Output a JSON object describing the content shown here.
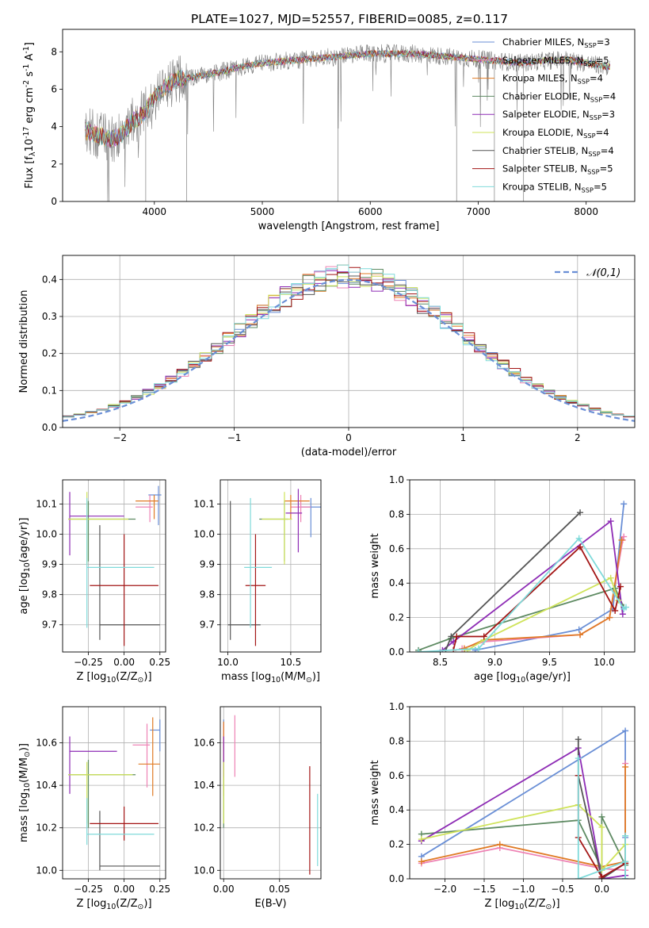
{
  "figure": {
    "title": "PLATE=1027, MJD=52557, FIBERID=0085, z=0.117"
  },
  "colors": {
    "Chabrier MILES": "#6a8fd6",
    "Salpeter MILES": "#ee82b4",
    "Kroupa MILES": "#e07b25",
    "Chabrier ELODIE": "#5e8a62",
    "Salpeter ELODIE": "#8e2cb5",
    "Kroupa ELODIE": "#cfe35a",
    "Chabrier STELIB": "#555555",
    "Salpeter STELIB": "#a31515",
    "Kroupa STELIB": "#7fdada",
    "data": "#808080"
  },
  "chart_data": [
    {
      "type": "line",
      "id": "spectrum",
      "xlabel": "wavelength [Angstrom, rest frame]",
      "ylabel": "Flux [f$_\\lambda$10$^{-17}$ erg cm$^{-2}$ s$^{-1}$ A$^{-1}$]",
      "xlim": [
        3150,
        8450
      ],
      "ylim": [
        0,
        9.2
      ],
      "xticks": [
        4000,
        5000,
        6000,
        7000,
        8000
      ],
      "yticks": [
        0,
        2,
        4,
        6,
        8
      ],
      "grid": false,
      "legend_position": "upper-right",
      "continuum": {
        "x": [
          3350,
          3450,
          3600,
          3700,
          3800,
          3900,
          4000,
          4100,
          4200,
          4400,
          4600,
          4800,
          5000,
          5200,
          5400,
          5600,
          5800,
          6000,
          6200,
          6400,
          6600,
          6800,
          7000,
          7200,
          7400,
          7600,
          7800,
          8000,
          8200
        ],
        "y": [
          3.8,
          3.6,
          3.3,
          3.6,
          4.3,
          4.7,
          5.6,
          6.1,
          6.5,
          6.7,
          6.9,
          7.2,
          7.4,
          7.5,
          7.6,
          7.7,
          7.8,
          7.9,
          7.9,
          7.9,
          7.8,
          7.7,
          7.6,
          7.5,
          7.4,
          7.5,
          7.6,
          7.4,
          7.2
        ]
      },
      "series": [
        {
          "name": "Chabrier MILES, N$_{SSP}$=3"
        },
        {
          "name": "Salpeter MILES, N$_{SSP}$=5"
        },
        {
          "name": "Kroupa MILES, N$_{SSP}$=4"
        },
        {
          "name": "Chabrier ELODIE, N$_{SSP}$=4"
        },
        {
          "name": "Salpeter ELODIE, N$_{SSP}$=3"
        },
        {
          "name": "Kroupa ELODIE, N$_{SSP}$=4"
        },
        {
          "name": "Chabrier STELIB, N$_{SSP}$=4"
        },
        {
          "name": "Salpeter STELIB, N$_{SSP}$=5"
        },
        {
          "name": "Kroupa STELIB, N$_{SSP}$=5"
        }
      ]
    },
    {
      "type": "histogram",
      "id": "residuals",
      "xlabel": "(data-model)/error",
      "ylabel": "Normed distribution",
      "xlim": [
        -2.5,
        2.5
      ],
      "ylim": [
        0,
        0.465
      ],
      "xticks": [
        -2,
        -1,
        0,
        1,
        2
      ],
      "yticks": [
        0.0,
        0.1,
        0.2,
        0.3,
        0.4
      ],
      "grid": true,
      "legend_position": "upper-right",
      "reference": {
        "name": "$\\mathcal{N}(0,1)$",
        "mu": 0,
        "sigma": 1
      },
      "bin_width": 0.1
    },
    {
      "type": "errorbar",
      "id": "age-vs-Z",
      "xlabel": "Z [log$_{10}$(Z/Z$_\\odot$)]",
      "ylabel": "age  [log$_{10}$(age/yr)]",
      "xlim": [
        -0.43,
        0.29
      ],
      "ylim": [
        9.61,
        10.18
      ],
      "xticks": [
        -0.25,
        0.0,
        0.25
      ],
      "yticks": [
        9.7,
        9.8,
        9.9,
        10.0,
        10.1
      ],
      "grid": true,
      "points": [
        {
          "series": "Chabrier MILES",
          "x": 0.24,
          "y": 10.13,
          "xerr": [
            0.07,
            0.02
          ],
          "yerr": [
            0.1,
            0.03
          ]
        },
        {
          "series": "Salpeter MILES",
          "x": 0.18,
          "y": 10.09,
          "xerr": [
            0.1,
            0.02
          ],
          "yerr": [
            0.05,
            0.04
          ]
        },
        {
          "series": "Kroupa MILES",
          "x": 0.21,
          "y": 10.11,
          "xerr": [
            0.13,
            0.03
          ],
          "yerr": [
            0.06,
            0.02
          ]
        },
        {
          "series": "Chabrier ELODIE",
          "x": -0.25,
          "y": 10.05,
          "xerr": [
            0.14,
            0.33
          ],
          "yerr": [
            0.14,
            0.06
          ]
        },
        {
          "series": "Salpeter ELODIE",
          "x": -0.38,
          "y": 10.06,
          "xerr": [
            0.0,
            0.38
          ],
          "yerr": [
            0.13,
            0.08
          ]
        },
        {
          "series": "Kroupa ELODIE",
          "x": -0.26,
          "y": 10.05,
          "xerr": [
            0.13,
            0.29
          ],
          "yerr": [
            0.15,
            0.09
          ]
        },
        {
          "series": "Chabrier STELIB",
          "x": -0.17,
          "y": 9.7,
          "xerr": [
            0.0,
            0.42
          ],
          "yerr": [
            0.05,
            0.33
          ]
        },
        {
          "series": "Salpeter STELIB",
          "x": 0.0,
          "y": 9.83,
          "xerr": [
            0.24,
            0.24
          ],
          "yerr": [
            0.2,
            0.17
          ]
        },
        {
          "series": "Kroupa STELIB",
          "x": -0.26,
          "y": 9.89,
          "xerr": [
            0.0,
            0.47
          ],
          "yerr": [
            0.2,
            0.23
          ]
        }
      ]
    },
    {
      "type": "errorbar",
      "id": "age-vs-mass",
      "xlabel": "mass [log$_{10}$(M/M$_\\odot$)]",
      "ylabel": "",
      "xlim": [
        9.94,
        10.74
      ],
      "ylim": [
        9.61,
        10.18
      ],
      "xticks": [
        10.0,
        10.5
      ],
      "yticks": [
        9.7,
        9.8,
        9.9,
        10.0,
        10.1
      ],
      "grid": true,
      "points": [
        {
          "series": "Chabrier MILES",
          "x": 10.66,
          "y": 10.09,
          "xerr": [
            0.08,
            0.08
          ],
          "yerr": [
            0.1,
            0.03
          ]
        },
        {
          "series": "Salpeter MILES",
          "x": 10.58,
          "y": 10.09,
          "xerr": [
            0.08,
            0.08
          ],
          "yerr": [
            0.05,
            0.04
          ]
        },
        {
          "series": "Kroupa MILES",
          "x": 10.5,
          "y": 10.11,
          "xerr": [
            0.05,
            0.15
          ],
          "yerr": [
            0.06,
            0.02
          ]
        },
        {
          "series": "Chabrier ELODIE",
          "x": 10.45,
          "y": 10.05,
          "xerr": [
            0.2,
            0.03
          ],
          "yerr": [
            0.14,
            0.06
          ]
        },
        {
          "series": "Salpeter ELODIE",
          "x": 10.56,
          "y": 10.07,
          "xerr": [
            0.1,
            0.03
          ],
          "yerr": [
            0.13,
            0.08
          ]
        },
        {
          "series": "Kroupa ELODIE",
          "x": 10.45,
          "y": 10.05,
          "xerr": [
            0.18,
            0.06
          ],
          "yerr": [
            0.15,
            0.09
          ]
        },
        {
          "series": "Chabrier STELIB",
          "x": 10.02,
          "y": 9.7,
          "xerr": [
            0.02,
            0.24
          ],
          "yerr": [
            0.05,
            0.41
          ]
        },
        {
          "series": "Salpeter STELIB",
          "x": 10.22,
          "y": 9.83,
          "xerr": [
            0.08,
            0.08
          ],
          "yerr": [
            0.2,
            0.17
          ]
        },
        {
          "series": "Kroupa STELIB",
          "x": 10.18,
          "y": 9.89,
          "xerr": [
            0.05,
            0.17
          ],
          "yerr": [
            0.2,
            0.23
          ]
        }
      ]
    },
    {
      "type": "line",
      "id": "weight-vs-age",
      "xlabel": "age  [log$_{10}$(age/yr)]",
      "ylabel": "mass weight",
      "xlim": [
        8.22,
        10.28
      ],
      "ylim": [
        0,
        1.0
      ],
      "xticks": [
        8.5,
        9.0,
        9.5,
        10.0
      ],
      "yticks": [
        0.0,
        0.2,
        0.4,
        0.6,
        0.8,
        1.0
      ],
      "grid": true,
      "series": [
        {
          "name": "Chabrier MILES",
          "x": [
            8.82,
            9.77,
            10.08,
            10.18
          ],
          "y": [
            0.01,
            0.13,
            0.25,
            0.86
          ]
        },
        {
          "name": "Salpeter MILES",
          "x": [
            8.7,
            8.9,
            9.78,
            10.05,
            10.17,
            10.18
          ],
          "y": [
            0.02,
            0.06,
            0.1,
            0.2,
            0.65,
            0.67
          ]
        },
        {
          "name": "Kroupa MILES",
          "x": [
            8.72,
            8.9,
            9.78,
            10.05,
            10.16
          ],
          "y": [
            0.02,
            0.07,
            0.1,
            0.2,
            0.65
          ]
        },
        {
          "name": "Chabrier ELODIE",
          "x": [
            8.3,
            8.6,
            10.1,
            10.18
          ],
          "y": [
            0.01,
            0.08,
            0.37,
            0.26
          ]
        },
        {
          "name": "Salpeter ELODIE",
          "x": [
            8.52,
            8.62,
            10.06,
            10.17
          ],
          "y": [
            0.01,
            0.06,
            0.76,
            0.22
          ]
        },
        {
          "name": "Kroupa ELODIE",
          "x": [
            8.75,
            8.9,
            10.06,
            10.13
          ],
          "y": [
            0.01,
            0.07,
            0.43,
            0.3
          ]
        },
        {
          "name": "Chabrier STELIB",
          "x": [
            8.55,
            8.6,
            9.78
          ],
          "y": [
            0.01,
            0.09,
            0.81
          ]
        },
        {
          "name": "Salpeter STELIB",
          "x": [
            8.62,
            8.65,
            8.9,
            9.78,
            10.1,
            10.15
          ],
          "y": [
            0.01,
            0.09,
            0.09,
            0.61,
            0.24,
            0.38
          ]
        },
        {
          "name": "Kroupa STELIB",
          "x": [
            8.3,
            8.85,
            9.77,
            10.18,
            10.2
          ],
          "y": [
            0.0,
            0.02,
            0.66,
            0.25,
            0.26
          ]
        }
      ]
    },
    {
      "type": "errorbar",
      "id": "mass-vs-Z",
      "xlabel": "Z [log$_{10}$(Z/Z$_\\odot$)]",
      "ylabel": "mass [log$_{10}$(M/M$_\\odot$)]",
      "xlim": [
        -0.43,
        0.29
      ],
      "ylim": [
        9.96,
        10.77
      ],
      "xticks": [
        -0.25,
        0.0,
        0.25
      ],
      "yticks": [
        10.0,
        10.2,
        10.4,
        10.6
      ],
      "grid": true,
      "points": [
        {
          "series": "Chabrier MILES",
          "x": 0.25,
          "y": 10.66,
          "xerr": [
            0.07,
            0.0
          ],
          "yerr": [
            0.1,
            0.05
          ]
        },
        {
          "series": "Salpeter MILES",
          "x": 0.16,
          "y": 10.59,
          "xerr": [
            0.1,
            0.02
          ],
          "yerr": [
            0.2,
            0.1
          ]
        },
        {
          "series": "Kroupa MILES",
          "x": 0.2,
          "y": 10.5,
          "xerr": [
            0.1,
            0.05
          ],
          "yerr": [
            0.15,
            0.22
          ]
        },
        {
          "series": "Chabrier ELODIE",
          "x": -0.25,
          "y": 10.45,
          "xerr": [
            0.14,
            0.33
          ],
          "yerr": [
            0.25,
            0.07
          ]
        },
        {
          "series": "Salpeter ELODIE",
          "x": -0.38,
          "y": 10.56,
          "xerr": [
            0.0,
            0.33
          ],
          "yerr": [
            0.2,
            0.07
          ]
        },
        {
          "series": "Kroupa ELODIE",
          "x": -0.26,
          "y": 10.45,
          "xerr": [
            0.13,
            0.32
          ],
          "yerr": [
            0.23,
            0.06
          ]
        },
        {
          "series": "Chabrier STELIB",
          "x": -0.17,
          "y": 10.02,
          "xerr": [
            0.0,
            0.42
          ],
          "yerr": [
            0.02,
            0.26
          ]
        },
        {
          "series": "Salpeter STELIB",
          "x": 0.0,
          "y": 10.22,
          "xerr": [
            0.24,
            0.24
          ],
          "yerr": [
            0.08,
            0.08
          ]
        },
        {
          "series": "Kroupa STELIB",
          "x": -0.26,
          "y": 10.17,
          "xerr": [
            0.0,
            0.47
          ],
          "yerr": [
            0.05,
            0.17
          ]
        }
      ]
    },
    {
      "type": "errorbar",
      "id": "mass-vs-EBV",
      "xlabel": "E(B-V)",
      "ylabel": "",
      "xlim": [
        -0.003,
        0.087
      ],
      "ylim": [
        9.96,
        10.77
      ],
      "xticks": [
        0.0,
        0.05
      ],
      "yticks": [
        10.0,
        10.2,
        10.4,
        10.6
      ],
      "grid": true,
      "points": [
        {
          "series": "Chabrier MILES",
          "x": 0.0,
          "y": 10.66,
          "xerr": [
            0,
            0
          ],
          "yerr": [
            0.1,
            0.05
          ]
        },
        {
          "series": "Salpeter MILES",
          "x": 0.0,
          "y": 10.59,
          "xerr": [
            0,
            0
          ],
          "yerr": [
            0.1,
            0.1
          ]
        },
        {
          "series": "Kroupa MILES",
          "x": 0.0,
          "y": 10.5,
          "xerr": [
            0,
            0
          ],
          "yerr": [
            0.15,
            0.2
          ]
        },
        {
          "series": "Chabrier ELODIE",
          "x": 0.0,
          "y": 10.45,
          "xerr": [
            0,
            0
          ],
          "yerr": [
            0.25,
            0.07
          ]
        },
        {
          "series": "Salpeter ELODIE",
          "x": 0.0,
          "y": 10.56,
          "xerr": [
            0,
            0
          ],
          "yerr": [
            0.12,
            0.07
          ]
        },
        {
          "series": "Kroupa ELODIE",
          "x": 0.0,
          "y": 10.45,
          "xerr": [
            0,
            0
          ],
          "yerr": [
            0.23,
            0.06
          ]
        },
        {
          "series": "Chabrier STELIB",
          "x": 0.0,
          "y": 10.02,
          "xerr": [
            0,
            0
          ],
          "yerr": [
            0.0,
            0.0
          ]
        },
        {
          "series": "Salpeter STELIB",
          "x": 0.077,
          "y": 10.22,
          "xerr": [
            0,
            0
          ],
          "yerr": [
            0.24,
            0.27
          ]
        },
        {
          "series": "Kroupa STELIB",
          "x": 0.084,
          "y": 10.17,
          "xerr": [
            0,
            0
          ],
          "yerr": [
            0.15,
            0.19
          ]
        },
        {
          "series": "Salpeter MILES",
          "x": 0.01,
          "y": 10.55,
          "xerr": [
            0,
            0
          ],
          "yerr": [
            0.11,
            0.18
          ]
        }
      ]
    },
    {
      "type": "line",
      "id": "weight-vs-Z",
      "xlabel": "Z [log$_{10}$(Z/Z$_\\odot$)]",
      "ylabel": "mass weight",
      "xlim": [
        -2.45,
        0.42
      ],
      "ylim": [
        0,
        1.0
      ],
      "xticks": [
        -2.0,
        -1.5,
        -1.0,
        -0.5,
        0.0
      ],
      "yticks": [
        0.0,
        0.2,
        0.4,
        0.6,
        0.8,
        1.0
      ],
      "grid": true,
      "series": [
        {
          "name": "Chabrier MILES",
          "x": [
            -2.3,
            0.3,
            0.3,
            0.3
          ],
          "y": [
            0.13,
            0.86,
            0.24,
            0.0
          ]
        },
        {
          "name": "Salpeter MILES",
          "x": [
            -2.3,
            -1.3,
            0.0,
            0.3,
            0.3,
            0.3
          ],
          "y": [
            0.09,
            0.18,
            0.06,
            0.05,
            0.67,
            0.05
          ]
        },
        {
          "name": "Kroupa MILES",
          "x": [
            -2.3,
            -1.3,
            0.0,
            0.3,
            0.3
          ],
          "y": [
            0.1,
            0.2,
            0.07,
            0.1,
            0.65
          ]
        },
        {
          "name": "Chabrier ELODIE",
          "x": [
            -2.3,
            -0.3,
            0.0,
            0.0,
            0.3
          ],
          "y": [
            0.26,
            0.34,
            0.06,
            0.36,
            0.08
          ]
        },
        {
          "name": "Salpeter ELODIE",
          "x": [
            -2.3,
            -0.3,
            0.0,
            0.3
          ],
          "y": [
            0.22,
            0.76,
            0.0,
            0.02
          ]
        },
        {
          "name": "Kroupa ELODIE",
          "x": [
            -2.3,
            -0.3,
            0.0,
            0.0,
            0.3
          ],
          "y": [
            0.23,
            0.43,
            0.3,
            0.05,
            0.2
          ]
        },
        {
          "name": "Chabrier STELIB",
          "x": [
            -0.3,
            -0.3,
            0.0,
            0.3
          ],
          "y": [
            0.81,
            0.6,
            0.0,
            0.09
          ]
        },
        {
          "name": "Salpeter STELIB",
          "x": [
            -0.3,
            -0.3,
            0.0,
            0.3
          ],
          "y": [
            0.6,
            0.24,
            0.01,
            0.09
          ]
        },
        {
          "name": "Kroupa STELIB",
          "x": [
            -0.3,
            -0.3,
            0.3,
            0.3,
            0.3
          ],
          "y": [
            0.7,
            0.0,
            0.1,
            0.25,
            0.0
          ]
        }
      ]
    }
  ]
}
